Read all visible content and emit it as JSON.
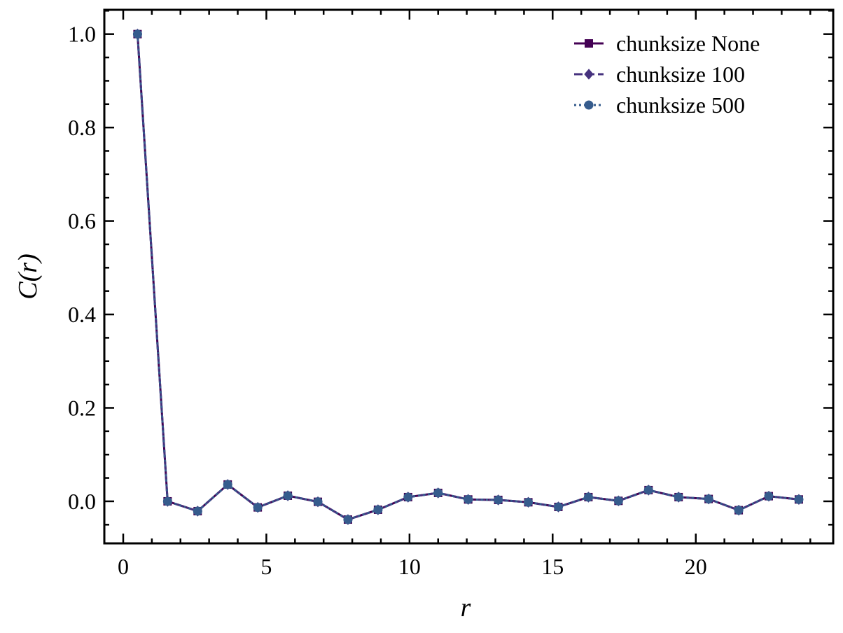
{
  "chart_data": {
    "type": "line",
    "xlabel": "r",
    "ylabel": "C(r)",
    "x": [
      0.5,
      1.55,
      2.6,
      3.65,
      4.7,
      5.75,
      6.8,
      7.85,
      8.9,
      9.95,
      11.0,
      12.05,
      13.1,
      14.15,
      15.2,
      16.25,
      17.3,
      18.35,
      19.4,
      20.45,
      21.5,
      22.55,
      23.6
    ],
    "series": [
      {
        "name": "chunksize None",
        "color": "#440154",
        "linestyle": "solid",
        "marker": "square",
        "values": [
          1.0,
          0.0,
          -0.021,
          0.036,
          -0.013,
          0.012,
          -0.001,
          -0.039,
          -0.018,
          0.009,
          0.018,
          0.004,
          0.003,
          -0.002,
          -0.012,
          0.009,
          0.001,
          0.024,
          0.009,
          0.005,
          -0.019,
          0.011,
          0.004
        ]
      },
      {
        "name": "chunksize 100",
        "color": "#46327e",
        "linestyle": "dashed",
        "marker": "diamond",
        "values": [
          1.0,
          0.0,
          -0.021,
          0.036,
          -0.013,
          0.012,
          -0.001,
          -0.039,
          -0.018,
          0.009,
          0.018,
          0.004,
          0.003,
          -0.002,
          -0.012,
          0.009,
          0.001,
          0.024,
          0.009,
          0.005,
          -0.019,
          0.011,
          0.004
        ]
      },
      {
        "name": "chunksize 500",
        "color": "#365c8d",
        "linestyle": "dotted",
        "marker": "circle",
        "values": [
          1.0,
          0.0,
          -0.021,
          0.036,
          -0.013,
          0.012,
          -0.001,
          -0.039,
          -0.018,
          0.009,
          0.018,
          0.004,
          0.003,
          -0.002,
          -0.012,
          0.009,
          0.001,
          0.024,
          0.009,
          0.005,
          -0.019,
          0.011,
          0.004
        ]
      }
    ],
    "xlim": [
      -0.66,
      24.8
    ],
    "ylim": [
      -0.09,
      1.052
    ],
    "xticks": [
      0,
      5,
      10,
      15,
      20
    ],
    "yticks": [
      {
        "value": 0,
        "label": "0.0"
      },
      {
        "value": 0.2,
        "label": "0.2"
      },
      {
        "value": 0.4,
        "label": "0.4"
      },
      {
        "value": 0.6,
        "label": "0.6"
      },
      {
        "value": 0.8,
        "label": "0.8"
      },
      {
        "value": 1.0,
        "label": "1.0"
      }
    ],
    "minor_xticks": [
      1,
      2,
      3,
      4,
      6,
      7,
      8,
      9,
      11,
      12,
      13,
      14,
      16,
      17,
      18,
      19,
      21,
      22,
      23,
      24
    ],
    "minor_yticks": [
      -0.05,
      0.05,
      0.1,
      0.15,
      0.25,
      0.3,
      0.35,
      0.45,
      0.5,
      0.55,
      0.65,
      0.7,
      0.75,
      0.85,
      0.9,
      0.95,
      1.05
    ],
    "legend": "upper right",
    "grid": false
  }
}
